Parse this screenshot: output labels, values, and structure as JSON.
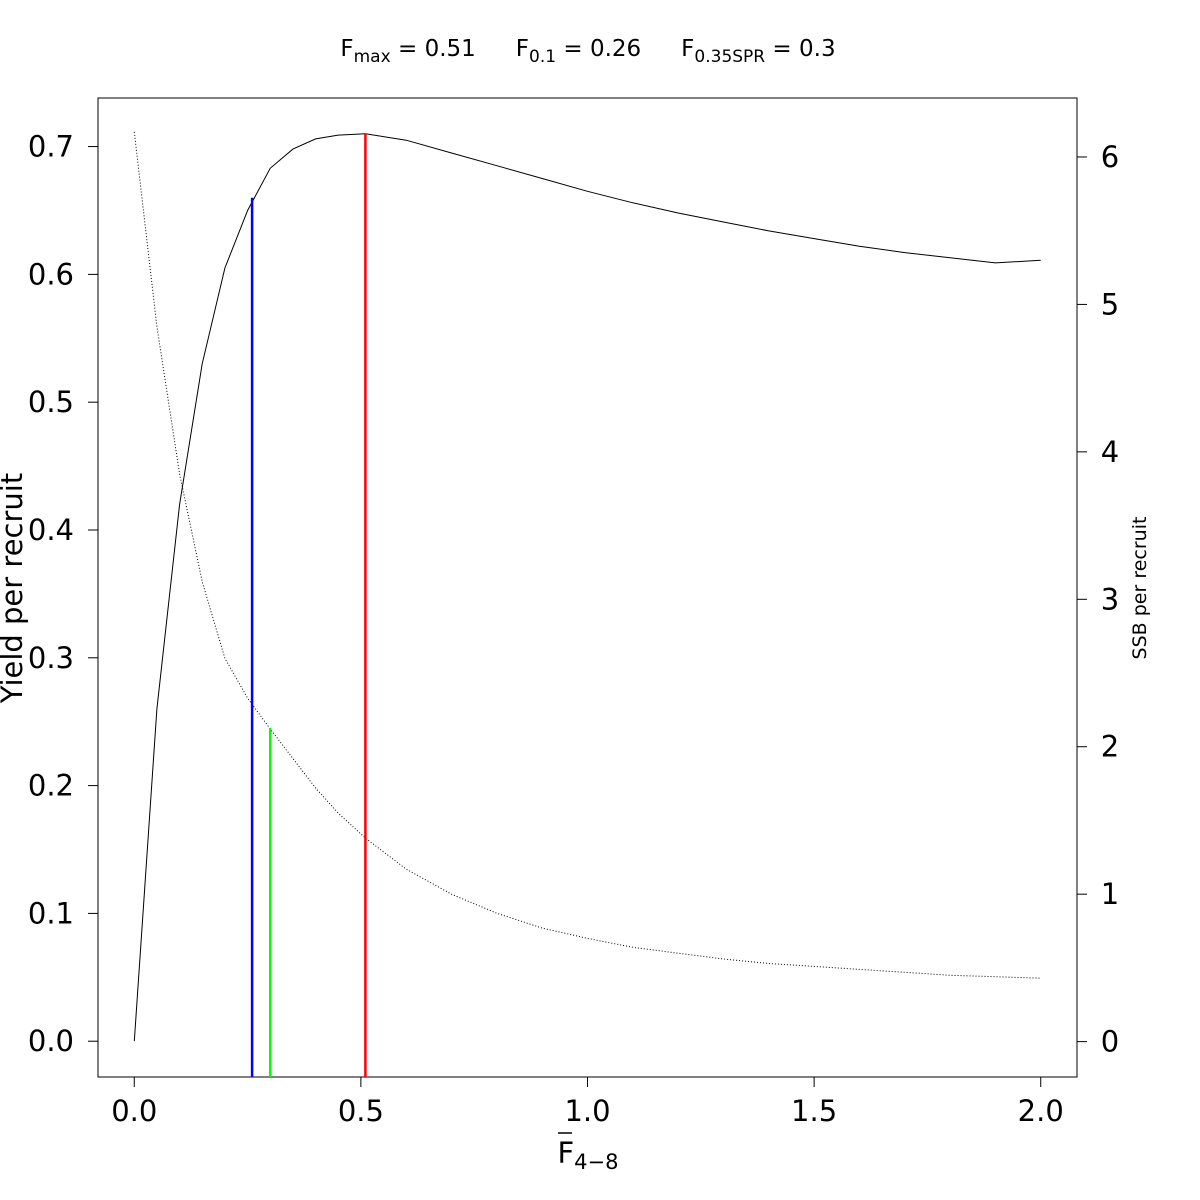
{
  "chart_data": {
    "type": "line",
    "header": [
      {
        "base": "F",
        "sub": "max",
        "rest": " = 0.51"
      },
      {
        "base": "F",
        "sub": "0.1",
        "rest": " = 0.26"
      },
      {
        "base": "F",
        "sub": "0.35SPR",
        "rest": " = 0.3"
      }
    ],
    "xlabel": {
      "base": "F",
      "sub": "4−8",
      "overline": true
    },
    "ylabel_left": "Yield per recruit",
    "ylabel_right": "SSB per recruit",
    "xlim": [
      -0.08,
      2.08
    ],
    "ylim_left": [
      -0.028,
      0.738
    ],
    "ylim_right": [
      -0.24,
      6.4
    ],
    "x_ticks": [
      0,
      0.5,
      1,
      1.5,
      2
    ],
    "x_tick_labels": [
      "0.0",
      "0.5",
      "1.0",
      "1.5",
      "2.0"
    ],
    "y_left_ticks": [
      0,
      0.1,
      0.2,
      0.3,
      0.4,
      0.5,
      0.6,
      0.7
    ],
    "y_left_tick_labels": [
      "0.0",
      "0.1",
      "0.2",
      "0.3",
      "0.4",
      "0.5",
      "0.6",
      "0.7"
    ],
    "y_right_ticks": [
      0,
      1,
      2,
      3,
      4,
      5,
      6
    ],
    "y_right_tick_labels": [
      "0",
      "1",
      "2",
      "3",
      "4",
      "5",
      "6"
    ],
    "grid": false,
    "legend": "none",
    "series": [
      {
        "axis": "left",
        "style": "solid",
        "color": "#000000",
        "x": [
          0,
          0.05,
          0.1,
          0.15,
          0.2,
          0.25,
          0.3,
          0.35,
          0.4,
          0.45,
          0.51,
          0.6,
          0.7,
          0.8,
          0.9,
          1.0,
          1.1,
          1.2,
          1.3,
          1.4,
          1.5,
          1.6,
          1.7,
          1.8,
          1.9,
          2.0
        ],
        "y": [
          0,
          0.26,
          0.42,
          0.53,
          0.605,
          0.65,
          0.683,
          0.698,
          0.706,
          0.709,
          0.71,
          0.705,
          0.695,
          0.685,
          0.675,
          0.665,
          0.656,
          0.648,
          0.641,
          0.634,
          0.628,
          0.622,
          0.617,
          0.613,
          0.609,
          0.611
        ]
      },
      {
        "axis": "right",
        "style": "dotted",
        "color": "#000000",
        "x": [
          0,
          0.05,
          0.1,
          0.15,
          0.2,
          0.25,
          0.3,
          0.35,
          0.4,
          0.45,
          0.51,
          0.6,
          0.7,
          0.8,
          0.9,
          1.0,
          1.1,
          1.2,
          1.3,
          1.4,
          1.5,
          1.6,
          1.7,
          1.8,
          1.9,
          2.0
        ],
        "y": [
          6.17,
          4.85,
          3.85,
          3.12,
          2.6,
          2.33,
          2.12,
          1.92,
          1.72,
          1.55,
          1.38,
          1.17,
          1.0,
          0.87,
          0.77,
          0.7,
          0.64,
          0.6,
          0.56,
          0.53,
          0.51,
          0.49,
          0.47,
          0.45,
          0.44,
          0.43
        ]
      }
    ],
    "reference_lines": [
      {
        "name": "Fmax",
        "x": 0.51,
        "y_top": 0.71,
        "color": "#ff0000"
      },
      {
        "name": "F0.1",
        "x": 0.26,
        "y_top": 0.66,
        "color": "#0000ff"
      },
      {
        "name": "F0.35SPR",
        "x": 0.3,
        "y_top": 0.245,
        "color": "#00ff00"
      }
    ]
  }
}
